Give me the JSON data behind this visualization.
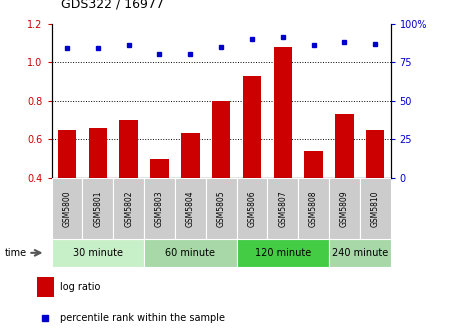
{
  "title": "GDS322 / 16977",
  "samples": [
    "GSM5800",
    "GSM5801",
    "GSM5802",
    "GSM5803",
    "GSM5804",
    "GSM5805",
    "GSM5806",
    "GSM5807",
    "GSM5808",
    "GSM5809",
    "GSM5810"
  ],
  "log_ratio": [
    0.65,
    0.66,
    0.7,
    0.5,
    0.635,
    0.8,
    0.93,
    1.08,
    0.54,
    0.73,
    0.65
  ],
  "percentile_rank": [
    84,
    84,
    86,
    80,
    80,
    85,
    90,
    91,
    86,
    88,
    87
  ],
  "ylim_left": [
    0.4,
    1.2
  ],
  "ylim_right": [
    0,
    100
  ],
  "yticks_left": [
    0.4,
    0.6,
    0.8,
    1.0,
    1.2
  ],
  "yticks_right": [
    0,
    25,
    50,
    75,
    100
  ],
  "ytick_labels_right": [
    "0",
    "25",
    "50",
    "75",
    "100%"
  ],
  "bar_color": "#cc0000",
  "dot_color": "#0000cc",
  "groups": [
    {
      "label": "30 minute",
      "start": 0,
      "end": 2,
      "color": "#c8f0c8"
    },
    {
      "label": "60 minute",
      "start": 3,
      "end": 5,
      "color": "#a8d8a8"
    },
    {
      "label": "120 minute",
      "start": 6,
      "end": 8,
      "color": "#44cc44"
    },
    {
      "label": "240 minute",
      "start": 9,
      "end": 10,
      "color": "#a8d8a8"
    }
  ],
  "time_label": "time",
  "legend_items": [
    {
      "label": "log ratio",
      "color": "#cc0000"
    },
    {
      "label": "percentile rank within the sample",
      "color": "#0000cc"
    }
  ],
  "dotted_lines": [
    0.6,
    0.8,
    1.0
  ],
  "bar_bottom": 0.4,
  "bar_width": 0.6,
  "sample_box_color": "#cccccc",
  "bg_color": "#ffffff"
}
